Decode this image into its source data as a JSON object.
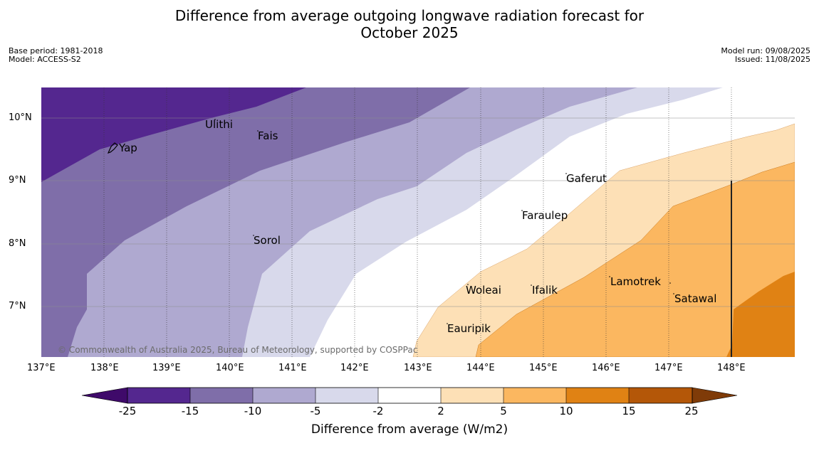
{
  "title_line1": "Difference from average outgoing longwave radiation forecast for",
  "title_line2": "October 2025",
  "meta_left": [
    "Base period: 1981-2018",
    "Model: ACCESS-S2"
  ],
  "meta_right": [
    "Model run: 09/08/2025",
    "Issued: 11/08/2025"
  ],
  "lon_labels": [
    "137°E",
    "138°E",
    "139°E",
    "140°E",
    "141°E",
    "142°E",
    "143°E",
    "144°E",
    "145°E",
    "146°E",
    "147°E",
    "148°E"
  ],
  "lat_labels": [
    "10°N",
    "9°N",
    "8°N",
    "7°N"
  ],
  "islands": [
    "Ulithi",
    "Fais",
    "Yap",
    "Gaferut",
    "Faraulep",
    "Sorol",
    "Woleai",
    "Ifalik",
    "Lamotrek",
    "Satawal",
    "Eauripik"
  ],
  "copyright": "© Commonwealth of Australia 2025, Bureau of Meteorology, supported by COSPPac",
  "colorbar": {
    "ticks": [
      "-25",
      "-15",
      "-10",
      "-5",
      "-2",
      "2",
      "5",
      "10",
      "15",
      "25"
    ],
    "colors": [
      "#3f0a6a",
      "#54278f",
      "#7f6ea9",
      "#afa9d0",
      "#d8d9eb",
      "#ffffff",
      "#fde0b6",
      "#fbb760",
      "#e08214",
      "#b45708",
      "#7f3b08"
    ],
    "label": "Difference from average (W/m2)"
  }
}
